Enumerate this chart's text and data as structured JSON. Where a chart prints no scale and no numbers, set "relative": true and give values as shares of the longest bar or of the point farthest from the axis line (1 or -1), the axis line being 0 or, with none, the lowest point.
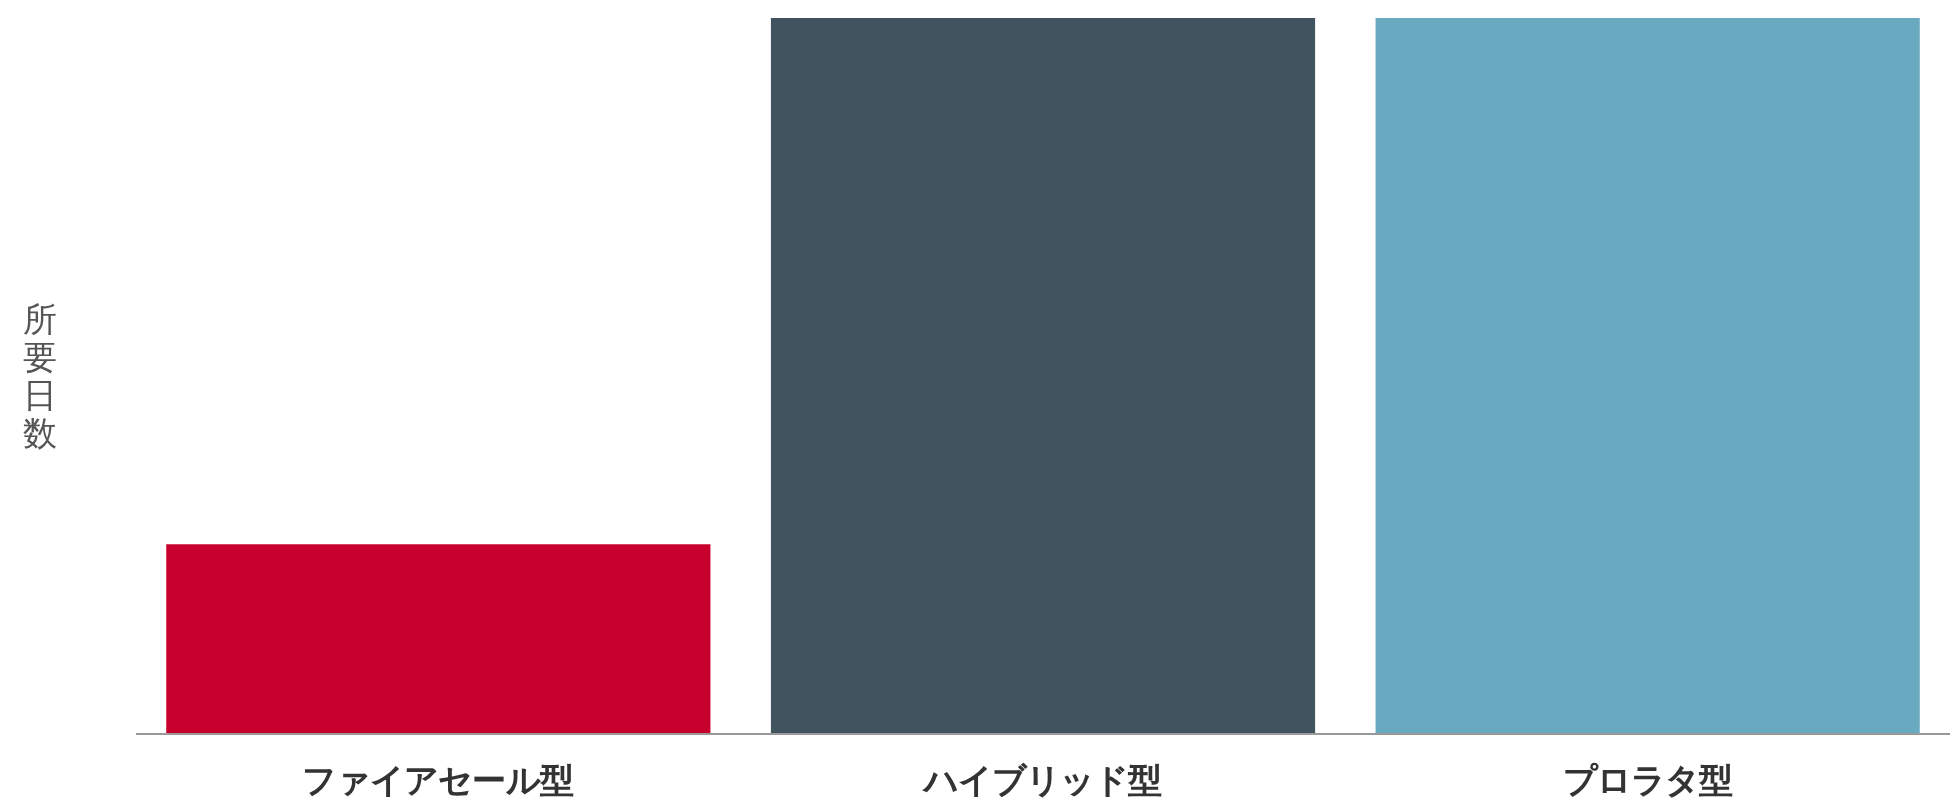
{
  "chart_data": {
    "type": "bar",
    "relative": true,
    "ylabel": "所要日数",
    "categories": [
      "ファイアセール型",
      "ハイブリッド型",
      "プロラタ型"
    ],
    "values": [
      0.265,
      1,
      1
    ],
    "colors": [
      "#c8002d",
      "#41535e",
      "#6aaac0"
    ],
    "grid": false
  }
}
